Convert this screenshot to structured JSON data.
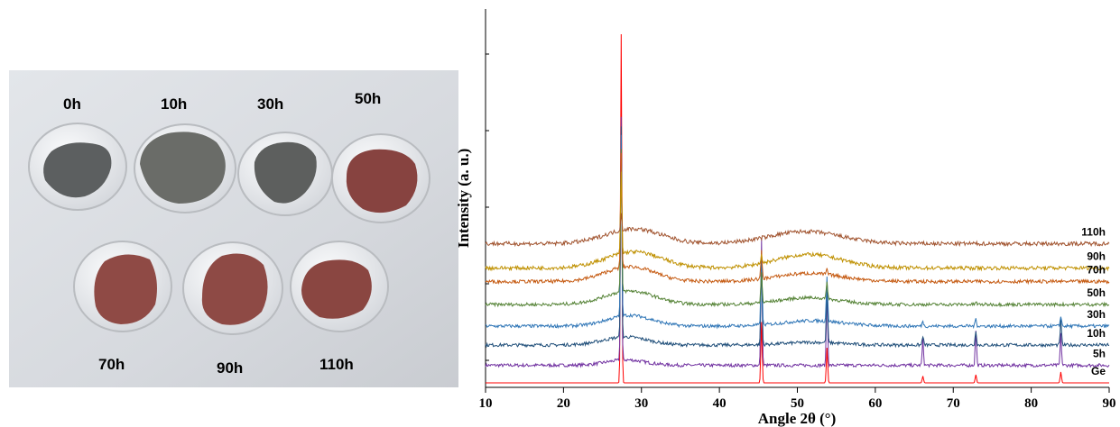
{
  "photo": {
    "samples": [
      {
        "label": "0h",
        "color": "#5c5f60"
      },
      {
        "label": "10h",
        "color": "#6a6c68"
      },
      {
        "label": "30h",
        "color": "#5d5f5e"
      },
      {
        "label": "50h",
        "color": "#874340"
      },
      {
        "label": "70h",
        "color": "#8f4a45"
      },
      {
        "label": "90h",
        "color": "#8e4a45"
      },
      {
        "label": "110h",
        "color": "#8a4641"
      }
    ]
  },
  "chart_data": {
    "type": "line",
    "xlabel": "Angle 2θ (°)",
    "ylabel": "Intensity  (a. u.)",
    "xlim": [
      10,
      90
    ],
    "xticks": [
      10,
      20,
      30,
      40,
      50,
      60,
      70,
      80,
      90
    ],
    "grid": false,
    "peak_positions_2theta": [
      27.4,
      45.4,
      53.8,
      66.1,
      72.9,
      83.8
    ],
    "series": [
      {
        "name": "Ge",
        "color": "#ff0000",
        "baseline": 0.0,
        "peaks": [
          [
            27.4,
            2.58
          ],
          [
            45.4,
            0.45
          ],
          [
            53.8,
            0.26
          ],
          [
            66.1,
            0.05
          ],
          [
            72.9,
            0.06
          ],
          [
            83.8,
            0.08
          ]
        ],
        "halo": [],
        "noise": 0.0
      },
      {
        "name": "5h",
        "color": "#7030a0",
        "baseline": 0.13,
        "peaks": [
          [
            27.4,
            1.8
          ],
          [
            45.4,
            0.92
          ],
          [
            53.8,
            0.56
          ],
          [
            66.1,
            0.19
          ],
          [
            72.9,
            0.26
          ],
          [
            83.8,
            0.23
          ]
        ],
        "halo": [
          [
            28.0,
            3.5,
            0.04
          ]
        ],
        "noise": 0.012
      },
      {
        "name": "10h",
        "color": "#1f4e79",
        "baseline": 0.28,
        "peaks": [
          [
            27.4,
            1.55
          ],
          [
            45.4,
            0.62
          ],
          [
            53.8,
            0.4
          ],
          [
            66.1,
            0.07
          ],
          [
            72.9,
            0.11
          ],
          [
            83.8,
            0.18
          ]
        ],
        "halo": [
          [
            28.0,
            4.0,
            0.06
          ],
          [
            52.0,
            5.0,
            0.02
          ]
        ],
        "noise": 0.012
      },
      {
        "name": "30h",
        "color": "#2e75b6",
        "baseline": 0.42,
        "peaks": [
          [
            27.4,
            1.35
          ],
          [
            45.4,
            0.52
          ],
          [
            53.8,
            0.34
          ],
          [
            66.1,
            0.04
          ],
          [
            72.9,
            0.06
          ],
          [
            83.8,
            0.08
          ]
        ],
        "halo": [
          [
            28.5,
            4.0,
            0.08
          ],
          [
            52.0,
            5.5,
            0.04
          ]
        ],
        "noise": 0.012
      },
      {
        "name": "50h",
        "color": "#548235",
        "baseline": 0.58,
        "peaks": [
          [
            27.4,
            1.05
          ],
          [
            45.4,
            0.22
          ],
          [
            53.8,
            0.13
          ],
          [
            72.9,
            0.02
          ]
        ],
        "halo": [
          [
            28.5,
            4.5,
            0.1
          ],
          [
            51.5,
            5.5,
            0.05
          ]
        ],
        "noise": 0.012
      },
      {
        "name": "70h",
        "color": "#c55a11",
        "baseline": 0.75,
        "peaks": [
          [
            27.4,
            0.85
          ],
          [
            45.4,
            0.2
          ],
          [
            53.8,
            0.04
          ]
        ],
        "halo": [
          [
            28.5,
            4.5,
            0.11
          ],
          [
            51.5,
            6.0,
            0.06
          ]
        ],
        "noise": 0.013
      },
      {
        "name": "90h",
        "color": "#bf9000",
        "baseline": 0.85,
        "peaks": [
          [
            27.4,
            0.6
          ],
          [
            45.4,
            0.06
          ]
        ],
        "halo": [
          [
            29.0,
            5.0,
            0.12
          ],
          [
            51.5,
            6.0,
            0.1
          ]
        ],
        "noise": 0.014
      },
      {
        "name": "110h",
        "color": "#a0522d",
        "baseline": 1.03,
        "peaks": [
          [
            27.4,
            0.12
          ]
        ],
        "halo": [
          [
            29.0,
            5.0,
            0.11
          ],
          [
            51.0,
            6.5,
            0.09
          ]
        ],
        "noise": 0.015
      }
    ]
  }
}
